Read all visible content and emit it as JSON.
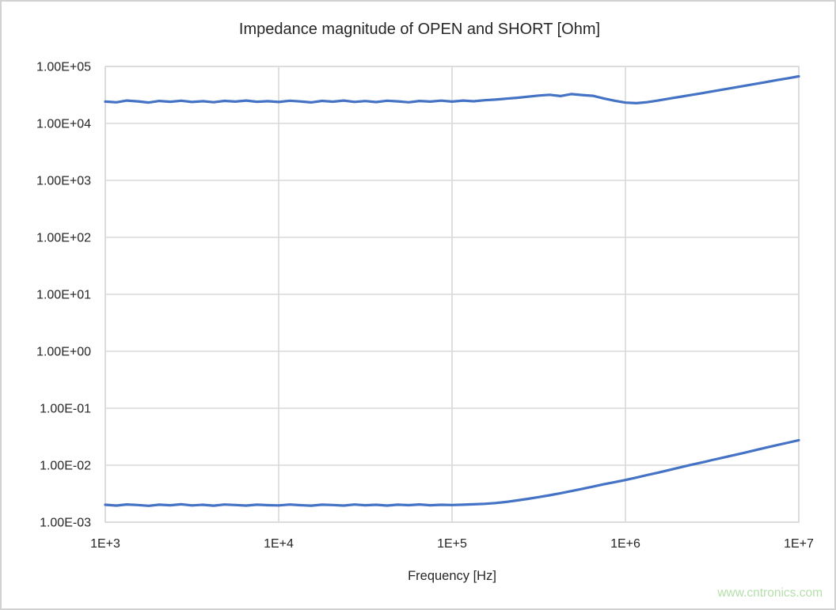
{
  "watermark": {
    "text": "www.cntronics.com",
    "color": "#b5dfaa"
  },
  "chart_data": {
    "type": "line",
    "title": "Impedance magnitude of OPEN and SHORT [Ohm]",
    "xlabel": "Frequency [Hz]",
    "ylabel": "",
    "grid": true,
    "legend": "none",
    "line_color": "#4472C4",
    "x_axis": {
      "scale": "log",
      "min": 1000.0,
      "max": 10000000.0,
      "tick_values": [
        1000.0,
        10000.0,
        100000.0,
        1000000.0,
        10000000.0
      ],
      "tick_labels": [
        "1E+3",
        "1E+4",
        "1E+5",
        "1E+6",
        "1E+7"
      ]
    },
    "y_axis": {
      "scale": "log",
      "min": 0.001,
      "max": 100000.0,
      "tick_values": [
        100000.0,
        10000.0,
        1000.0,
        100.0,
        10.0,
        1.0,
        0.1,
        0.01,
        0.001
      ],
      "tick_labels": [
        "1.00E+05",
        "1.00E+04",
        "1.00E+03",
        "1.00E+02",
        "1.00E+01",
        "1.00E+00",
        "1.00E-01",
        "1.00E-02",
        "1.00E-03"
      ]
    },
    "series": [
      {
        "name": "OPEN",
        "points": [
          [
            1000,
            24200
          ],
          [
            1160,
            23500
          ],
          [
            1330,
            25200
          ],
          [
            1540,
            24400
          ],
          [
            1780,
            23300
          ],
          [
            2050,
            24800
          ],
          [
            2370,
            24000
          ],
          [
            2740,
            25000
          ],
          [
            3160,
            23800
          ],
          [
            3650,
            24600
          ],
          [
            4220,
            23600
          ],
          [
            4870,
            24900
          ],
          [
            5620,
            24200
          ],
          [
            6490,
            25200
          ],
          [
            7500,
            24000
          ],
          [
            8660,
            24600
          ],
          [
            10000,
            23800
          ],
          [
            11600,
            25000
          ],
          [
            13300,
            24300
          ],
          [
            15400,
            23400
          ],
          [
            17800,
            24900
          ],
          [
            20500,
            24100
          ],
          [
            23700,
            25200
          ],
          [
            27400,
            23900
          ],
          [
            31600,
            24700
          ],
          [
            36500,
            23700
          ],
          [
            42200,
            25000
          ],
          [
            48700,
            24400
          ],
          [
            56200,
            23500
          ],
          [
            64900,
            24800
          ],
          [
            75000,
            24200
          ],
          [
            86600,
            25100
          ],
          [
            100000.0,
            24200
          ],
          [
            116000.0,
            25200
          ],
          [
            133000.0,
            24500
          ],
          [
            154000.0,
            25500
          ],
          [
            178000.0,
            26200
          ],
          [
            205000.0,
            27200
          ],
          [
            237000.0,
            28200
          ],
          [
            274000.0,
            29500
          ],
          [
            316000.0,
            30800
          ],
          [
            365000.0,
            31800
          ],
          [
            422000.0,
            30200
          ],
          [
            487000.0,
            32800
          ],
          [
            562000.0,
            31500
          ],
          [
            649000.0,
            30500
          ],
          [
            750000.0,
            27500
          ],
          [
            866000.0,
            25000
          ],
          [
            1000000.0,
            23200
          ],
          [
            1160000.0,
            22700
          ],
          [
            1330000.0,
            23600
          ],
          [
            1540000.0,
            25200
          ],
          [
            1780000.0,
            27200
          ],
          [
            2050000.0,
            29200
          ],
          [
            2370000.0,
            31400
          ],
          [
            2740000.0,
            33800
          ],
          [
            3160000.0,
            36400
          ],
          [
            3650000.0,
            39300
          ],
          [
            4220000.0,
            42400
          ],
          [
            4870000.0,
            45800
          ],
          [
            5620000.0,
            49400
          ],
          [
            6490000.0,
            53300
          ],
          [
            7500000.0,
            57600
          ],
          [
            8660000.0,
            62100
          ],
          [
            10000000.0,
            67000
          ]
        ]
      },
      {
        "name": "SHORT",
        "points": [
          [
            1000,
            0.00202
          ],
          [
            1160,
            0.00196
          ],
          [
            1330,
            0.00205
          ],
          [
            1540,
            0.002
          ],
          [
            1780,
            0.00194
          ],
          [
            2050,
            0.00203
          ],
          [
            2370,
            0.00198
          ],
          [
            2740,
            0.00206
          ],
          [
            3160,
            0.00197
          ],
          [
            3650,
            0.00202
          ],
          [
            4220,
            0.00195
          ],
          [
            4870,
            0.00204
          ],
          [
            5620,
            0.002
          ],
          [
            6490,
            0.00196
          ],
          [
            7500,
            0.00203
          ],
          [
            8660,
            0.00199
          ],
          [
            10000,
            0.00197
          ],
          [
            11600,
            0.00204
          ],
          [
            13300,
            0.00199
          ],
          [
            15400,
            0.00195
          ],
          [
            17800,
            0.00203
          ],
          [
            20500,
            0.002
          ],
          [
            23700,
            0.00196
          ],
          [
            27400,
            0.00204
          ],
          [
            31600,
            0.00198
          ],
          [
            36500,
            0.00202
          ],
          [
            42200,
            0.00196
          ],
          [
            48700,
            0.00203
          ],
          [
            56200,
            0.00199
          ],
          [
            64900,
            0.00205
          ],
          [
            75000,
            0.00198
          ],
          [
            86600,
            0.00202
          ],
          [
            100000.0,
            0.002
          ],
          [
            116000.0,
            0.00203
          ],
          [
            133000.0,
            0.00206
          ],
          [
            154000.0,
            0.0021
          ],
          [
            178000.0,
            0.00217
          ],
          [
            205000.0,
            0.00227
          ],
          [
            237000.0,
            0.00241
          ],
          [
            274000.0,
            0.00257
          ],
          [
            316000.0,
            0.00276
          ],
          [
            365000.0,
            0.00297
          ],
          [
            422000.0,
            0.00322
          ],
          [
            487000.0,
            0.00351
          ],
          [
            562000.0,
            0.00384
          ],
          [
            649000.0,
            0.00421
          ],
          [
            750000.0,
            0.00462
          ],
          [
            866000.0,
            0.00504
          ],
          [
            1000000.0,
            0.0055
          ],
          [
            1160000.0,
            0.00608
          ],
          [
            1330000.0,
            0.0067
          ],
          [
            1540000.0,
            0.0074
          ],
          [
            1780000.0,
            0.0082
          ],
          [
            2050000.0,
            0.0091
          ],
          [
            2370000.0,
            0.0101
          ],
          [
            2740000.0,
            0.0111
          ],
          [
            3160000.0,
            0.0123
          ],
          [
            3650000.0,
            0.0136
          ],
          [
            4220000.0,
            0.015
          ],
          [
            4870000.0,
            0.0166
          ],
          [
            5620000.0,
            0.0184
          ],
          [
            6490000.0,
            0.0204
          ],
          [
            7500000.0,
            0.0225
          ],
          [
            8660000.0,
            0.0249
          ],
          [
            10000000.0,
            0.0275
          ]
        ]
      }
    ]
  }
}
